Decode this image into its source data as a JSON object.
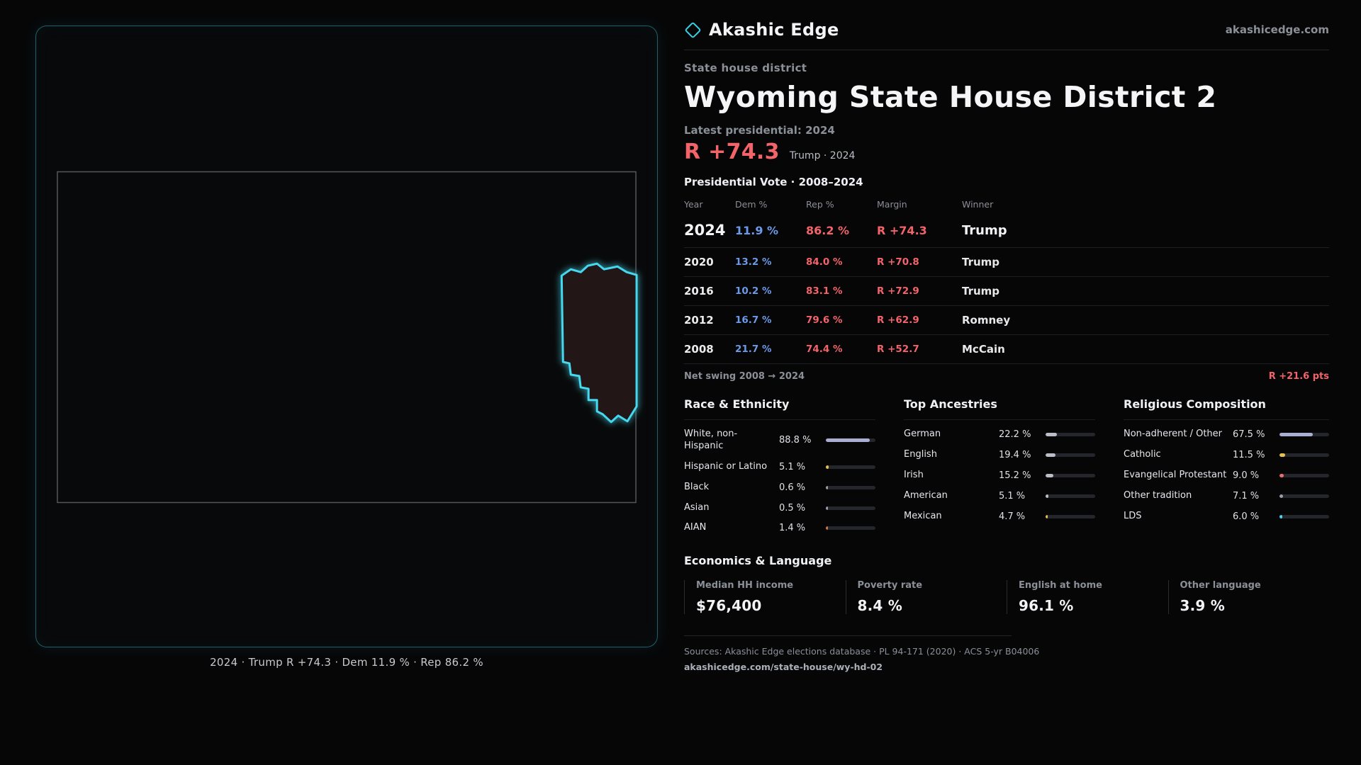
{
  "brand": {
    "name": "Akashic Edge",
    "site": "akashicedge.com",
    "logo": "diamond-icon"
  },
  "page": {
    "kicker": "State house district",
    "title": "Wyoming State House District 2",
    "latest_label": "Latest presidential: 2024",
    "headline_margin": "R +74.3",
    "headline_sub": "Trump · 2024"
  },
  "map": {
    "caption": "2024 · Trump R +74.3 · Dem 11.9 % · Rep 86.2 %"
  },
  "vote_table": {
    "title": "Presidential Vote · 2008–2024",
    "columns": {
      "year": "Year",
      "dem": "Dem %",
      "rep": "Rep %",
      "margin": "Margin",
      "winner": "Winner"
    },
    "rows": [
      {
        "year": "2024",
        "dem": "11.9 %",
        "rep": "86.2 %",
        "margin": "R +74.3",
        "winner": "Trump"
      },
      {
        "year": "2020",
        "dem": "13.2 %",
        "rep": "84.0 %",
        "margin": "R +70.8",
        "winner": "Trump"
      },
      {
        "year": "2016",
        "dem": "10.2 %",
        "rep": "83.1 %",
        "margin": "R +72.9",
        "winner": "Trump"
      },
      {
        "year": "2012",
        "dem": "16.7 %",
        "rep": "79.6 %",
        "margin": "R +62.9",
        "winner": "Romney"
      },
      {
        "year": "2008",
        "dem": "21.7 %",
        "rep": "74.4 %",
        "margin": "R +52.7",
        "winner": "McCain"
      }
    ],
    "net_swing_label": "Net swing 2008 → 2024",
    "net_swing_value": "R +21.6 pts"
  },
  "race": {
    "title": "Race & Ethnicity",
    "rows": [
      {
        "label": "White, non-Hispanic",
        "value": "88.8 %",
        "pct": 88.8,
        "color": "#a9aed2"
      },
      {
        "label": "Hispanic or Latino",
        "value": "5.1 %",
        "pct": 5.1,
        "color": "#e5c04c"
      },
      {
        "label": "Black",
        "value": "0.6 %",
        "pct": 0.6,
        "color": "#9aa0ab"
      },
      {
        "label": "Asian",
        "value": "0.5 %",
        "pct": 0.5,
        "color": "#9aa0ab"
      },
      {
        "label": "AIAN",
        "value": "1.4 %",
        "pct": 1.4,
        "color": "#d2734a"
      }
    ]
  },
  "ancestry": {
    "title": "Top Ancestries",
    "rows": [
      {
        "label": "German",
        "value": "22.2 %",
        "pct": 22.2,
        "color": "#b9bec8"
      },
      {
        "label": "English",
        "value": "19.4 %",
        "pct": 19.4,
        "color": "#b9bec8"
      },
      {
        "label": "Irish",
        "value": "15.2 %",
        "pct": 15.2,
        "color": "#b9bec8"
      },
      {
        "label": "American",
        "value": "5.1 %",
        "pct": 5.1,
        "color": "#b9bec8"
      },
      {
        "label": "Mexican",
        "value": "4.7 %",
        "pct": 4.7,
        "color": "#e5c04c"
      }
    ]
  },
  "religion": {
    "title": "Religious Composition",
    "rows": [
      {
        "label": "Non-adherent / Other",
        "value": "67.5 %",
        "pct": 67.5,
        "color": "#a9aed2"
      },
      {
        "label": "Catholic",
        "value": "11.5 %",
        "pct": 11.5,
        "color": "#e5c04c"
      },
      {
        "label": "Evangelical Protestant",
        "value": "9.0 %",
        "pct": 9.0,
        "color": "#f26a6e"
      },
      {
        "label": "Other tradition",
        "value": "7.1 %",
        "pct": 7.1,
        "color": "#9aa0ab"
      },
      {
        "label": "LDS",
        "value": "6.0 %",
        "pct": 6.0,
        "color": "#49d6ea"
      }
    ]
  },
  "economics": {
    "title": "Economics & Language",
    "stats": [
      {
        "label": "Median HH income",
        "value": "$76,400"
      },
      {
        "label": "Poverty rate",
        "value": "8.4 %"
      },
      {
        "label": "English at home",
        "value": "96.1 %"
      },
      {
        "label": "Other language",
        "value": "3.9 %"
      }
    ]
  },
  "footer": {
    "sources": "Sources: Akashic Edge elections database · PL 94-171 (2020) · ACS 5-yr B04006",
    "permalink": "akashicedge.com/state-house/wy-hd-02"
  },
  "colors": {
    "accent": "#3ad0e8",
    "rep": "#f2636a",
    "dem": "#6b9ae8"
  },
  "chart_data": [
    {
      "type": "table",
      "title": "Presidential Vote · 2008–2024",
      "columns": [
        "Year",
        "Dem %",
        "Rep %",
        "Margin",
        "Winner"
      ],
      "rows": [
        [
          "2024",
          11.9,
          86.2,
          "R +74.3",
          "Trump"
        ],
        [
          "2020",
          13.2,
          84.0,
          "R +70.8",
          "Trump"
        ],
        [
          "2016",
          10.2,
          83.1,
          "R +72.9",
          "Trump"
        ],
        [
          "2012",
          16.7,
          79.6,
          "R +62.9",
          "Romney"
        ],
        [
          "2008",
          21.7,
          74.4,
          "R +52.7",
          "McCain"
        ]
      ]
    },
    {
      "type": "bar",
      "title": "Race & Ethnicity",
      "categories": [
        "White, non-Hispanic",
        "Hispanic or Latino",
        "Black",
        "Asian",
        "AIAN"
      ],
      "values": [
        88.8,
        5.1,
        0.6,
        0.5,
        1.4
      ],
      "xlim": [
        0,
        100
      ]
    },
    {
      "type": "bar",
      "title": "Top Ancestries",
      "categories": [
        "German",
        "English",
        "Irish",
        "American",
        "Mexican"
      ],
      "values": [
        22.2,
        19.4,
        15.2,
        5.1,
        4.7
      ],
      "xlim": [
        0,
        100
      ]
    },
    {
      "type": "bar",
      "title": "Religious Composition",
      "categories": [
        "Non-adherent / Other",
        "Catholic",
        "Evangelical Protestant",
        "Other tradition",
        "LDS"
      ],
      "values": [
        67.5,
        11.5,
        9.0,
        7.1,
        6.0
      ],
      "xlim": [
        0,
        100
      ]
    }
  ]
}
